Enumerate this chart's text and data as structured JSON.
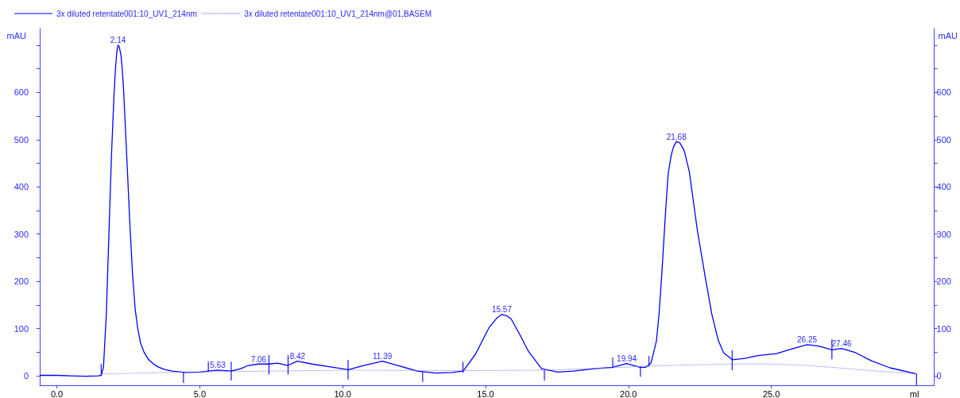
{
  "chart_data": {
    "type": "line",
    "xlabel": "ml",
    "ylabel": "mAU",
    "y2label": "mAU",
    "legend": "top left",
    "xlim": [
      -0.6,
      30.7
    ],
    "ylim": [
      -20,
      735
    ],
    "y2lim": [
      -20,
      735
    ],
    "xticks": [
      {
        "value": 0,
        "label": "0.0"
      },
      {
        "value": 5,
        "label": "5.0"
      },
      {
        "value": 10,
        "label": "10.0"
      },
      {
        "value": 15,
        "label": "15.0"
      },
      {
        "value": 20,
        "label": "20.0"
      },
      {
        "value": 25,
        "label": "25.0"
      }
    ],
    "yticks": [
      0,
      {
        "value": 50,
        "label": null
      },
      100,
      {
        "value": 150,
        "label": null
      },
      200,
      {
        "value": 250,
        "label": null
      },
      300,
      {
        "value": 350,
        "label": null
      },
      400,
      {
        "value": 450,
        "label": null
      },
      500,
      {
        "value": 550,
        "label": null
      },
      600,
      {
        "value": 650,
        "label": null
      },
      {
        "value": 700,
        "label": null
      }
    ],
    "y2ticks": [
      0,
      {
        "value": 50,
        "label": null
      },
      100,
      {
        "value": 150,
        "label": null
      },
      200,
      {
        "value": 250,
        "label": null
      },
      300,
      {
        "value": 350,
        "label": null
      },
      400,
      {
        "value": 450,
        "label": null
      },
      500,
      {
        "value": 550,
        "label": null
      },
      600,
      {
        "value": 650,
        "label": null
      },
      {
        "value": 700,
        "label": null
      }
    ],
    "series": [
      {
        "name": "3x diluted retentate001:10_UV1_214nm",
        "color": "#0000ff",
        "x": [
          -0.6,
          0,
          0.5,
          1.0,
          1.45,
          1.55,
          1.63,
          1.73,
          1.82,
          1.91,
          2.0,
          2.05,
          2.1,
          2.14,
          2.18,
          2.24,
          2.28,
          2.33,
          2.37,
          2.47,
          2.56,
          2.65,
          2.74,
          2.83,
          2.93,
          3.05,
          3.2,
          3.4,
          3.57,
          3.8,
          4.04,
          4.49,
          5.0,
          5.3,
          5.63,
          6.1,
          6.43,
          6.7,
          7.06,
          7.4,
          7.73,
          8.08,
          8.42,
          8.93,
          9.58,
          10.2,
          10.68,
          11.39,
          11.98,
          12.62,
          13.27,
          13.82,
          14.22,
          14.65,
          15.12,
          15.39,
          15.57,
          15.75,
          15.9,
          16.22,
          16.5,
          16.96,
          17.52,
          18.07,
          18.81,
          19.45,
          19.94,
          20.4,
          20.6,
          20.79,
          20.98,
          21.07,
          21.16,
          21.3,
          21.39,
          21.5,
          21.58,
          21.68,
          21.8,
          21.95,
          22.13,
          22.41,
          22.69,
          22.92,
          23.15,
          23.33,
          23.64,
          24.07,
          24.53,
          25.18,
          25.73,
          26.25,
          26.66,
          27.12,
          27.46,
          27.95,
          28.5,
          29.15,
          30.08
        ],
        "values": [
          1,
          1,
          0,
          -1,
          0,
          1,
          18,
          130,
          298,
          466,
          595,
          650,
          688,
          700,
          697,
          680,
          655,
          610,
          560,
          432,
          314,
          213,
          141,
          100,
          69,
          50,
          35,
          24,
          18,
          13,
          10,
          7,
          8,
          10,
          12,
          10,
          15,
          22,
          25,
          25,
          27,
          22,
          31,
          25,
          19,
          13,
          21,
          31,
          21,
          10,
          6,
          7,
          10,
          46,
          102,
          122,
          130,
          127,
          120,
          85,
          52,
          15,
          8,
          10,
          15,
          18,
          26,
          18,
          18,
          27,
          74,
          130,
          208,
          348,
          427,
          468,
          485,
          496,
          493,
          477,
          432,
          309,
          208,
          130,
          74,
          49,
          34,
          37,
          43,
          47,
          57,
          66,
          63,
          55,
          58,
          49,
          32,
          17,
          4
        ]
      },
      {
        "name": "3x diluted retentate001:10_UV1_214nm@01,BASEM",
        "color": "#7a7aff",
        "line_style": "dotted",
        "x": [
          1.55,
          4.43,
          7.4,
          10.19,
          14.21,
          17.06,
          19.45,
          20.42,
          20.72,
          23.63,
          25.0,
          26.25,
          27.12,
          28.5,
          30.08
        ],
        "values": [
          4,
          8,
          10,
          12,
          11,
          12,
          17,
          20,
          21,
          25,
          25,
          22,
          18,
          11,
          4
        ]
      },
      {
        "color": "#0000ff",
        "x": [
          1.55,
          1.55
        ],
        "values": [
          25,
          0
        ]
      },
      {
        "color": "#0000ff",
        "x": [
          4.43,
          4.43
        ],
        "values": [
          8,
          -15
        ]
      },
      {
        "color": "#0000ff",
        "x": [
          5.3,
          5.3
        ],
        "values": [
          30,
          8
        ]
      },
      {
        "color": "#0000ff",
        "x": [
          6.1,
          6.1
        ],
        "values": [
          30,
          -10
        ]
      },
      {
        "color": "#0000ff",
        "x": [
          7.42,
          7.42
        ],
        "values": [
          44,
          3
        ]
      },
      {
        "color": "#0000ff",
        "x": [
          8.09,
          8.09
        ],
        "values": [
          44,
          3
        ]
      },
      {
        "color": "#0000ff",
        "x": [
          10.19,
          10.19
        ],
        "values": [
          34,
          -8
        ]
      },
      {
        "color": "#0000ff",
        "x": [
          12.8,
          12.8
        ],
        "values": [
          8,
          -13
        ]
      },
      {
        "color": "#0000ff",
        "x": [
          14.21,
          14.21
        ],
        "values": [
          29,
          7
        ]
      },
      {
        "color": "#0000ff",
        "x": [
          17.06,
          17.06
        ],
        "values": [
          12,
          -10
        ]
      },
      {
        "color": "#0000ff",
        "x": [
          19.45,
          19.45
        ],
        "values": [
          39,
          17
        ]
      },
      {
        "color": "#0000ff",
        "x": [
          20.42,
          20.42
        ],
        "values": [
          20,
          -2
        ]
      },
      {
        "color": "#0000ff",
        "x": [
          20.72,
          20.72
        ],
        "values": [
          42,
          20
        ]
      },
      {
        "color": "#0000ff",
        "x": [
          23.63,
          23.63
        ],
        "values": [
          54,
          12
        ]
      },
      {
        "color": "#0000ff",
        "x": [
          27.12,
          27.12
        ],
        "values": [
          77,
          35
        ]
      },
      {
        "color": "#0000ff",
        "x": [
          30.08,
          30.08
        ],
        "values": [
          4,
          -20
        ]
      }
    ],
    "annotations": [
      {
        "text": "2.14",
        "x": 2.14,
        "y": 700
      },
      {
        "text": "5.63",
        "x": 5.63,
        "y": 12
      },
      {
        "text": "7.06",
        "x": 7.06,
        "y": 25
      },
      {
        "text": "8.42",
        "x": 8.42,
        "y": 31
      },
      {
        "text": "11.39",
        "x": 11.39,
        "y": 31
      },
      {
        "text": "15.57",
        "x": 15.57,
        "y": 130
      },
      {
        "text": "19.94",
        "x": 19.94,
        "y": 26
      },
      {
        "text": "21.68",
        "x": 21.68,
        "y": 496
      },
      {
        "text": "26.25",
        "x": 26.25,
        "y": 66
      },
      {
        "text": "27.46",
        "x": 27.46,
        "y": 58
      }
    ]
  }
}
